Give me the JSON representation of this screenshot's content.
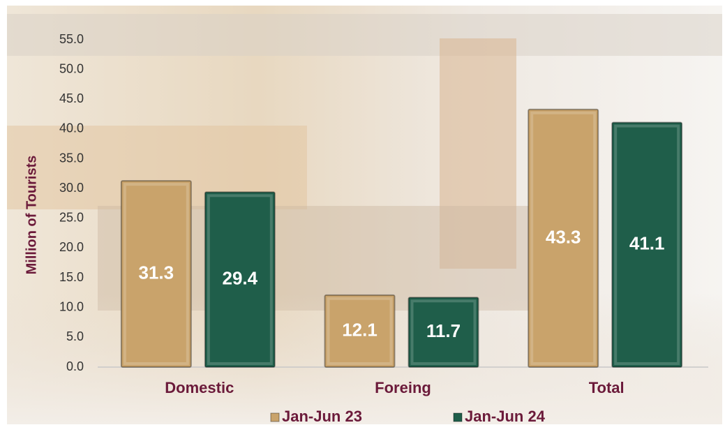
{
  "chart_data": {
    "type": "bar",
    "y_label": "Million of Tourists",
    "categories": [
      "Domestic",
      "Foreing",
      "Total"
    ],
    "series": [
      {
        "name": "Jan-Jun 23",
        "color": "#c9a36b",
        "values": [
          31.3,
          12.1,
          43.3
        ]
      },
      {
        "name": "Jan-Jun 24",
        "color": "#1f5e4a",
        "values": [
          29.4,
          11.7,
          41.1
        ]
      }
    ],
    "ylim": [
      0,
      55
    ],
    "yticks": [
      {
        "value": 0,
        "label": "0.0"
      },
      {
        "value": 5,
        "label": "5.0"
      },
      {
        "value": 10,
        "label": "10.0"
      },
      {
        "value": 15,
        "label": "15.0"
      },
      {
        "value": 20,
        "label": "20.0"
      },
      {
        "value": 25,
        "label": "25.0"
      },
      {
        "value": 30,
        "label": "30.0"
      },
      {
        "value": 35,
        "label": "35.0"
      },
      {
        "value": 40,
        "label": "40.0"
      },
      {
        "value": 45,
        "label": "45.0"
      },
      {
        "value": 50,
        "label": "50.0"
      },
      {
        "value": 55,
        "label": "55.0"
      }
    ],
    "grid": false
  }
}
